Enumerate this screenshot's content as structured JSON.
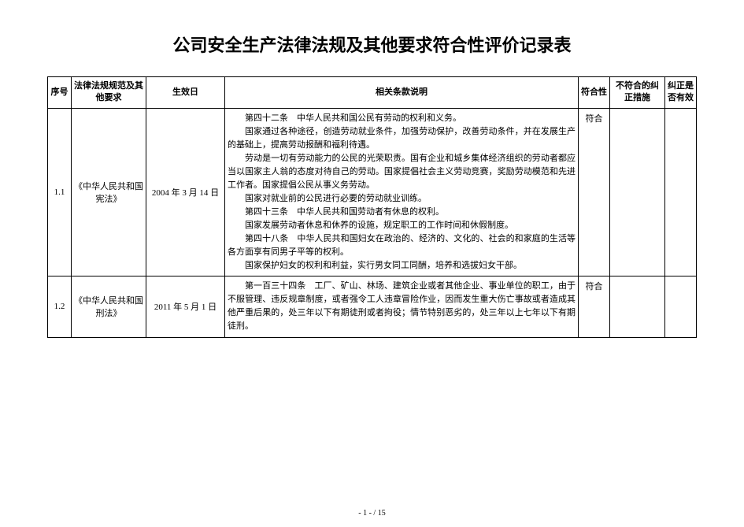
{
  "title": "公司安全生产法律法规及其他要求符合性评价记录表",
  "columns": {
    "seq": "序号",
    "name": "法律法规规范及其他要求",
    "date": "生效日",
    "desc": "相关条款说明",
    "conformity": "符合性",
    "corrective": "不符合的纠正措施",
    "effective": "纠正是否有效"
  },
  "rows": [
    {
      "seq": "1.1",
      "name": "《中华人民共和国宪法》",
      "date": "2004 年 3 月 14 日",
      "desc_lines": [
        "第四十二条　中华人民共和国公民有劳动的权利和义务。",
        "国家通过各种途径，创造劳动就业条件，加强劳动保护，改善劳动条件，并在发展生产的基础上，提高劳动报酬和福利待遇。",
        "劳动是一切有劳动能力的公民的光荣职责。国有企业和城乡集体经济组织的劳动者都应当以国家主人翁的态度对待自己的劳动。国家提倡社会主义劳动竞赛，奖励劳动模范和先进工作者。国家提倡公民从事义务劳动。",
        "国家对就业前的公民进行必要的劳动就业训练。",
        "第四十三条　中华人民共和国劳动者有休息的权利。",
        "国家发展劳动者休息和休养的设施，规定职工的工作时间和休假制度。",
        "第四十八条　中华人民共和国妇女在政治的、经济的、文化的、社会的和家庭的生活等各方面享有同男子平等的权利。",
        "国家保护妇女的权利和利益，实行男女同工同酬，培养和选拔妇女干部。"
      ],
      "conformity": "符合",
      "corrective": "",
      "effective": ""
    },
    {
      "seq": "1.2",
      "name": "《中华人民共和国刑法》",
      "date": "2011 年 5 月 1 日",
      "desc_lines": [
        "第一百三十四条　工厂、矿山、林场、建筑企业或者其他企业、事业单位的职工，由于不服管理、违反规章制度，或者强令工人违章冒险作业，因而发生重大伤亡事故或者造成其他严重后果的，处三年以下有期徒刑或者拘役；情节特别恶劣的，处三年以上七年以下有期徒刑。"
      ],
      "conformity": "符合",
      "corrective": "",
      "effective": ""
    }
  ],
  "footer": "- 1 -  / 15"
}
